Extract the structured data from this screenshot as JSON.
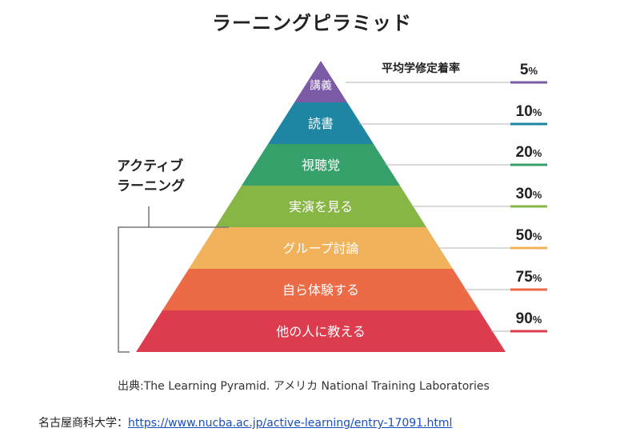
{
  "title": "ラーニングピラミッド",
  "header_label": "平均学修定着率",
  "active_learning_label": [
    "アクティブ",
    "ラーニング"
  ],
  "levels": [
    {
      "label": "講義",
      "percent": "5",
      "color": "#7b5aa6"
    },
    {
      "label": "読書",
      "percent": "10",
      "color": "#1e86a3"
    },
    {
      "label": "視聴覚",
      "percent": "20",
      "color": "#35a06a"
    },
    {
      "label": "実演を見る",
      "percent": "30",
      "color": "#88b645"
    },
    {
      "label": "グループ討論",
      "percent": "50",
      "color": "#f0b25a"
    },
    {
      "label": "自ら体験する",
      "percent": "75",
      "color": "#ec6b46"
    },
    {
      "label": "他の人に教える",
      "percent": "90",
      "color": "#dc3c4e"
    }
  ],
  "percent_symbol": "%",
  "source": "出典:The Learning Pyramid. アメリカ National Training Laboratories",
  "credit": {
    "prefix": "名古屋商科大学：",
    "link_text": "https://www.nucba.ac.jp/active-learning/entry-17091.html"
  }
}
